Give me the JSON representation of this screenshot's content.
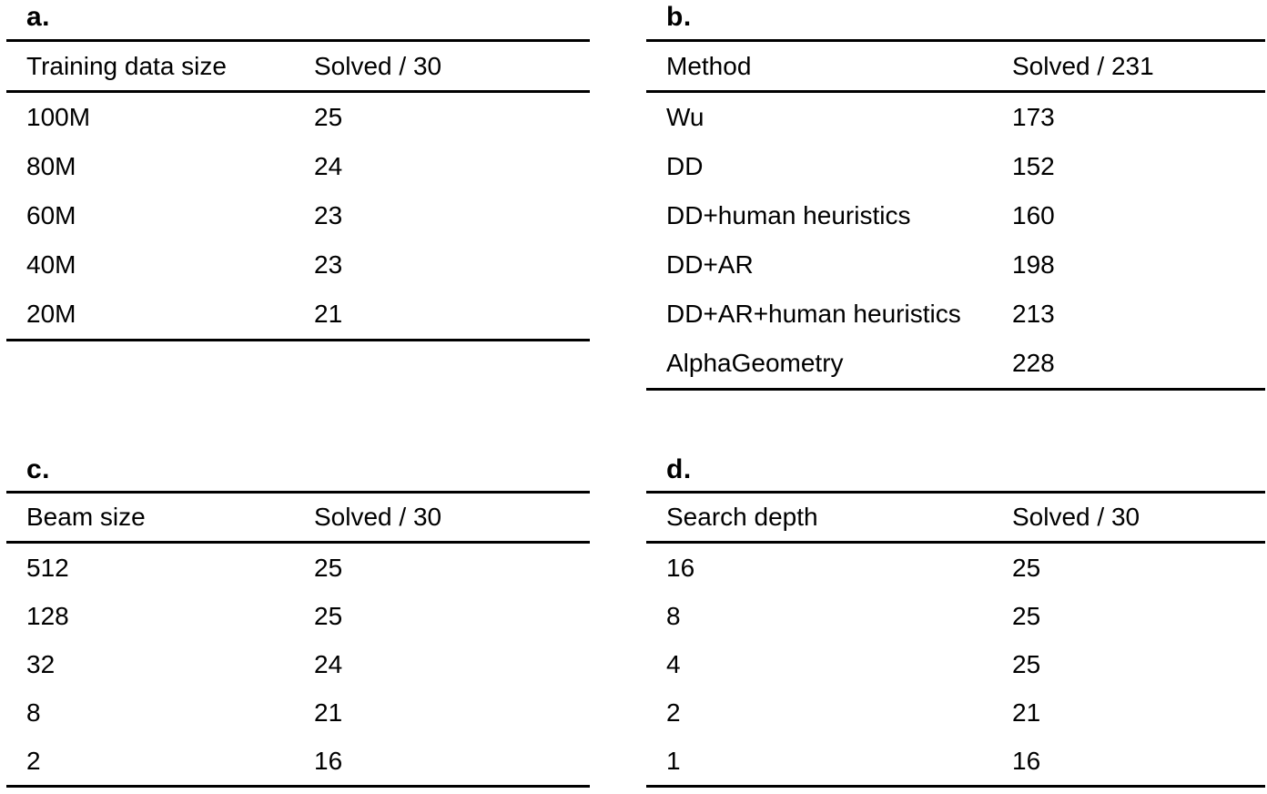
{
  "figure": {
    "description": "Four ablation result tables labelled a-d",
    "colors": {
      "background": "#ffffff",
      "text": "#000000",
      "rule": "#000000"
    },
    "panels": [
      {
        "id": "a",
        "label": "a.",
        "columns": [
          "Training data size",
          "Solved / 30"
        ],
        "rows": [
          [
            "100M",
            "25"
          ],
          [
            "80M",
            "24"
          ],
          [
            "60M",
            "23"
          ],
          [
            "40M",
            "23"
          ],
          [
            "20M",
            "21"
          ]
        ]
      },
      {
        "id": "b",
        "label": "b.",
        "columns": [
          "Method",
          "Solved / 231"
        ],
        "rows": [
          [
            "Wu",
            "173"
          ],
          [
            "DD",
            "152"
          ],
          [
            "DD+human heuristics",
            "160"
          ],
          [
            "DD+AR",
            "198"
          ],
          [
            "DD+AR+human heuristics",
            "213"
          ],
          [
            "AlphaGeometry",
            "228"
          ]
        ]
      },
      {
        "id": "c",
        "label": "c.",
        "columns": [
          "Beam size",
          "Solved / 30"
        ],
        "rows": [
          [
            "512",
            "25"
          ],
          [
            "128",
            "25"
          ],
          [
            "32",
            "24"
          ],
          [
            "8",
            "21"
          ],
          [
            "2",
            "16"
          ]
        ]
      },
      {
        "id": "d",
        "label": "d.",
        "columns": [
          "Search depth",
          "Solved / 30"
        ],
        "rows": [
          [
            "16",
            "25"
          ],
          [
            "8",
            "25"
          ],
          [
            "4",
            "25"
          ],
          [
            "2",
            "21"
          ],
          [
            "1",
            "16"
          ]
        ]
      }
    ]
  }
}
